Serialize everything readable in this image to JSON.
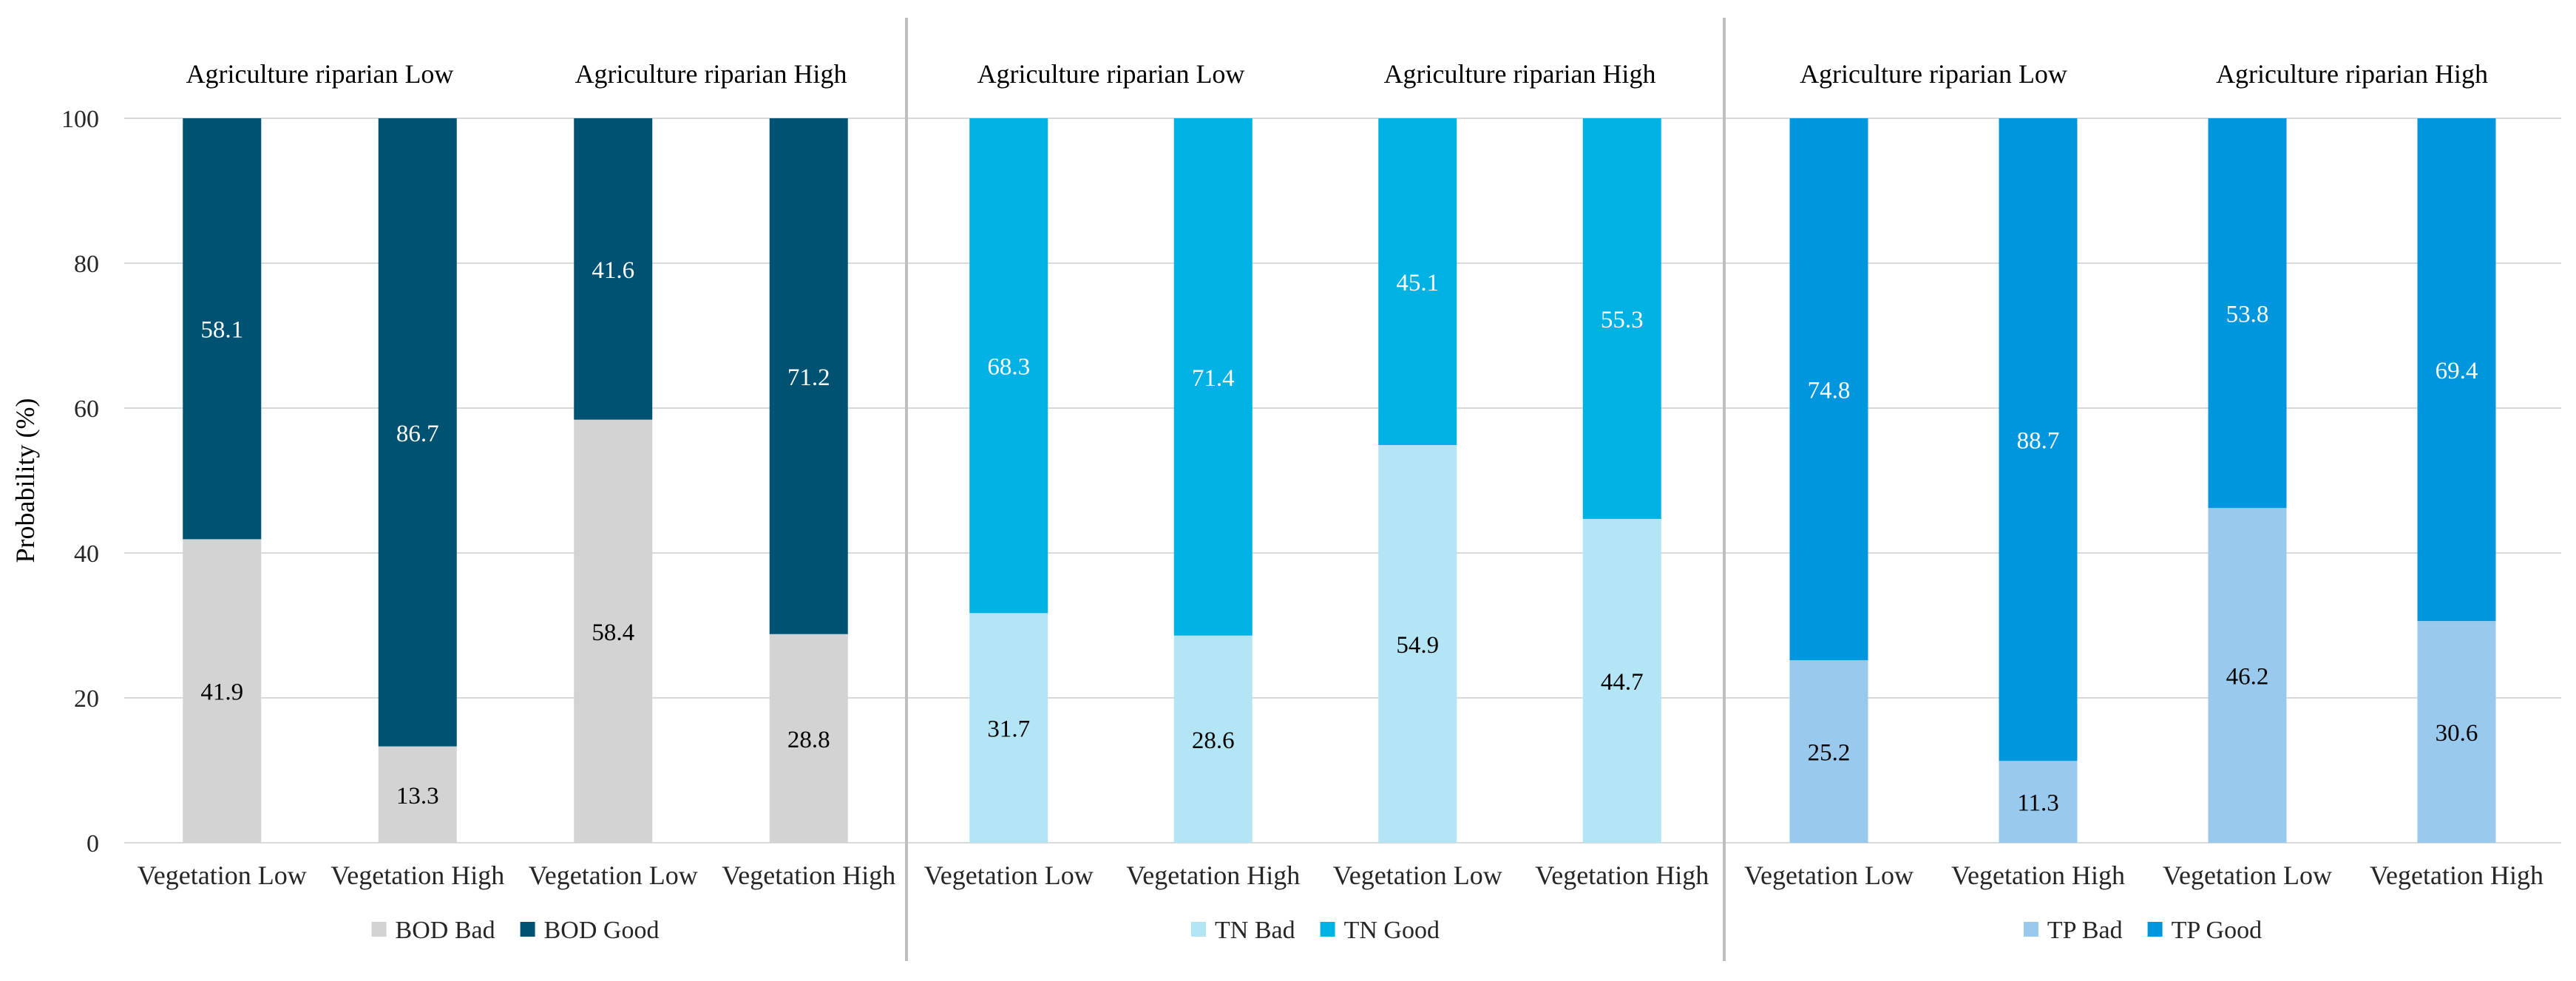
{
  "chart_data": {
    "type": "bar",
    "stacked": true,
    "ylabel": "Probability (%)",
    "ylim": [
      0,
      100
    ],
    "yticks": [
      0,
      20,
      40,
      60,
      80,
      100
    ],
    "grid": true,
    "categories": [
      "Vegetation Low",
      "Vegetation High",
      "Vegetation Low",
      "Vegetation High"
    ],
    "group_labels": [
      "Agriculture riparian Low",
      "Agriculture riparian High"
    ],
    "panels": [
      {
        "indicator": "BOD",
        "series": [
          {
            "name": "BOD Bad",
            "color": "#d3d3d3",
            "label_color": "#000000",
            "values": [
              41.9,
              13.3,
              58.4,
              28.8
            ]
          },
          {
            "name": "BOD Good",
            "color": "#005272",
            "label_color": "#ffffff",
            "values": [
              58.1,
              86.7,
              41.6,
              71.2
            ]
          }
        ]
      },
      {
        "indicator": "TN",
        "series": [
          {
            "name": "TN Bad",
            "color": "#b3e5f5",
            "label_color": "#000000",
            "values": [
              31.7,
              28.6,
              54.9,
              44.7
            ]
          },
          {
            "name": "TN Good",
            "color": "#00b1e3",
            "label_color": "#ffffff",
            "values": [
              68.3,
              71.4,
              45.1,
              55.3
            ]
          }
        ]
      },
      {
        "indicator": "TP",
        "series": [
          {
            "name": "TP Bad",
            "color": "#99caee",
            "label_color": "#000000",
            "values": [
              25.2,
              11.3,
              46.2,
              30.6
            ]
          },
          {
            "name": "TP Good",
            "color": "#0096dd",
            "label_color": "#ffffff",
            "values": [
              74.8,
              88.7,
              53.8,
              69.4
            ]
          }
        ]
      }
    ]
  },
  "colors": {
    "grid": "#d9d9d9",
    "divider": "#bfbfbf"
  }
}
